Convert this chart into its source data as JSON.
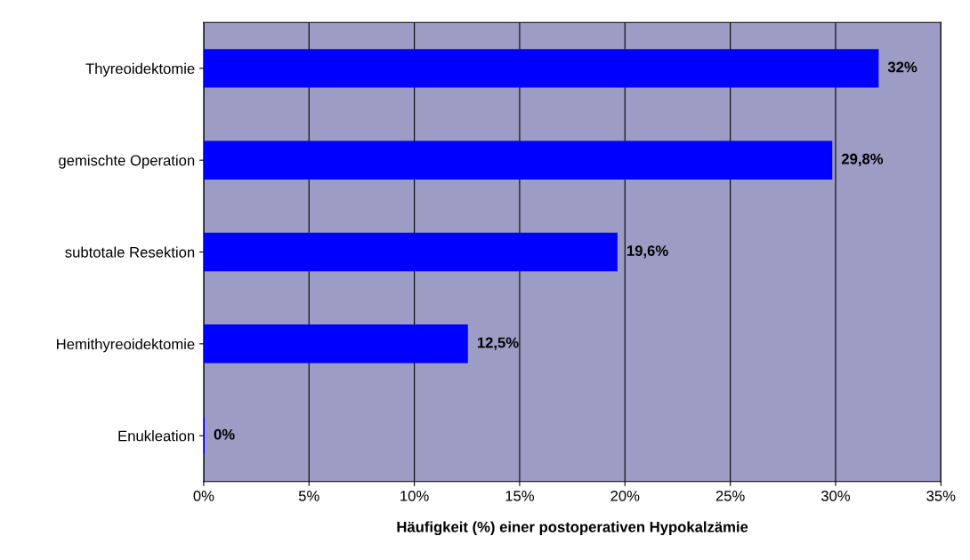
{
  "chart_data": {
    "type": "bar",
    "orientation": "horizontal",
    "xlabel": "Häufigkeit (%) einer postoperativen Hypokalzämie",
    "categories": [
      "Thyreoidektomie",
      "gemischte Operation",
      "subtotale Resektion",
      "Hemithyreoidektomie",
      "Enukleation"
    ],
    "values": [
      32,
      29.8,
      19.6,
      12.5,
      0
    ],
    "value_labels": [
      "32%",
      "29,8%",
      "19,6%",
      "12,5%",
      "0%"
    ],
    "color": "#0000ff",
    "xlim": [
      0,
      35
    ],
    "xticks": [
      {
        "value": 0,
        "label": "0%"
      },
      {
        "value": 5,
        "label": "5%"
      },
      {
        "value": 10,
        "label": "10%"
      },
      {
        "value": 15,
        "label": "15%"
      },
      {
        "value": 20,
        "label": "20%"
      },
      {
        "value": 25,
        "label": "25%"
      },
      {
        "value": 30,
        "label": "30%"
      },
      {
        "value": 35,
        "label": "35%"
      }
    ],
    "grid": "x"
  }
}
